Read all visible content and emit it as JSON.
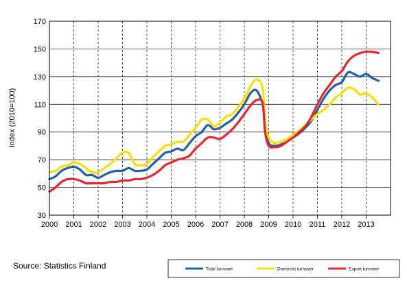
{
  "source": "Source: Statistics Finland",
  "chart_data": {
    "type": "line",
    "title": "",
    "xlabel": "",
    "ylabel": "Index (2010=100)",
    "ylim": [
      30,
      170
    ],
    "yticks": [
      30,
      50,
      70,
      90,
      110,
      130,
      150,
      170
    ],
    "xlim": [
      2000,
      2014
    ],
    "xticks": [
      "2000",
      "2001",
      "2002",
      "2003",
      "2004",
      "2005",
      "2006",
      "2007",
      "2008",
      "2009",
      "2010",
      "2011",
      "2012",
      "2013"
    ],
    "grid": "dashed vertical at years, solid horizontal at y ticks",
    "legend": "bottom-right",
    "series": [
      {
        "name": "Total turnover",
        "color": "#1f5fa8",
        "x": [
          2000.0,
          2000.25,
          2000.5,
          2000.75,
          2001.0,
          2001.25,
          2001.5,
          2001.75,
          2002.0,
          2002.25,
          2002.5,
          2002.75,
          2003.0,
          2003.25,
          2003.5,
          2003.75,
          2004.0,
          2004.25,
          2004.5,
          2004.75,
          2005.0,
          2005.25,
          2005.5,
          2005.75,
          2006.0,
          2006.25,
          2006.5,
          2006.75,
          2007.0,
          2007.25,
          2007.5,
          2007.75,
          2008.0,
          2008.25,
          2008.5,
          2008.75,
          2008.85,
          2009.0,
          2009.25,
          2009.5,
          2009.75,
          2010.0,
          2010.25,
          2010.5,
          2010.75,
          2011.0,
          2011.25,
          2011.5,
          2011.75,
          2012.0,
          2012.25,
          2012.5,
          2012.75,
          2013.0,
          2013.25,
          2013.5
        ],
        "values": [
          56,
          58,
          62,
          64,
          65,
          63,
          59,
          59,
          57,
          59,
          61,
          62,
          62,
          64,
          62,
          62,
          63,
          67,
          71,
          75,
          76,
          78,
          77,
          82,
          87,
          90,
          95,
          92,
          93,
          96,
          99,
          104,
          110,
          118,
          120,
          110,
          95,
          82,
          80,
          81,
          83,
          86,
          89,
          93,
          98,
          106,
          114,
          120,
          124,
          126,
          133,
          132,
          130,
          132,
          129,
          127
        ]
      },
      {
        "name": "Domestic turnover",
        "color": "#ffdd00",
        "x": [
          2000.0,
          2000.25,
          2000.5,
          2000.75,
          2001.0,
          2001.25,
          2001.5,
          2001.75,
          2002.0,
          2002.25,
          2002.5,
          2002.75,
          2003.0,
          2003.25,
          2003.5,
          2003.75,
          2004.0,
          2004.25,
          2004.5,
          2004.75,
          2005.0,
          2005.25,
          2005.5,
          2005.75,
          2006.0,
          2006.25,
          2006.5,
          2006.75,
          2007.0,
          2007.25,
          2007.5,
          2007.75,
          2008.0,
          2008.25,
          2008.5,
          2008.75,
          2008.85,
          2009.0,
          2009.25,
          2009.5,
          2009.75,
          2010.0,
          2010.25,
          2010.5,
          2010.75,
          2011.0,
          2011.25,
          2011.5,
          2011.75,
          2012.0,
          2012.25,
          2012.5,
          2012.75,
          2013.0,
          2013.25,
          2013.5
        ],
        "values": [
          61,
          62,
          65,
          66,
          68,
          67,
          64,
          61,
          61,
          64,
          67,
          71,
          75,
          75,
          67,
          66,
          67,
          72,
          76,
          80,
          81,
          83,
          83,
          88,
          93,
          99,
          99,
          94,
          97,
          101,
          103,
          108,
          114,
          123,
          128,
          122,
          98,
          86,
          82,
          83,
          85,
          88,
          91,
          95,
          99,
          103,
          106,
          110,
          115,
          118,
          122,
          121,
          117,
          118,
          115,
          110
        ]
      },
      {
        "name": "Export turnover",
        "color": "#e8252e",
        "x": [
          2000.0,
          2000.25,
          2000.5,
          2000.75,
          2001.0,
          2001.25,
          2001.5,
          2001.75,
          2002.0,
          2002.25,
          2002.5,
          2002.75,
          2003.0,
          2003.25,
          2003.5,
          2003.75,
          2004.0,
          2004.25,
          2004.5,
          2004.75,
          2005.0,
          2005.25,
          2005.5,
          2005.75,
          2006.0,
          2006.25,
          2006.5,
          2006.75,
          2007.0,
          2007.25,
          2007.5,
          2007.75,
          2008.0,
          2008.25,
          2008.5,
          2008.75,
          2008.85,
          2009.0,
          2009.25,
          2009.5,
          2009.75,
          2010.0,
          2010.25,
          2010.5,
          2010.75,
          2011.0,
          2011.25,
          2011.5,
          2011.75,
          2012.0,
          2012.25,
          2012.5,
          2012.75,
          2013.0,
          2013.25,
          2013.5
        ],
        "values": [
          47,
          50,
          54,
          56,
          56,
          55,
          53,
          53,
          53,
          53,
          54,
          54,
          55,
          55,
          56,
          56,
          57,
          59,
          62,
          66,
          68,
          70,
          71,
          73,
          78,
          82,
          86,
          86,
          85,
          88,
          92,
          97,
          103,
          109,
          113,
          111,
          90,
          80,
          79,
          80,
          83,
          86,
          90,
          94,
          101,
          110,
          118,
          124,
          130,
          134,
          141,
          145,
          147,
          148,
          148,
          147
        ]
      }
    ]
  }
}
